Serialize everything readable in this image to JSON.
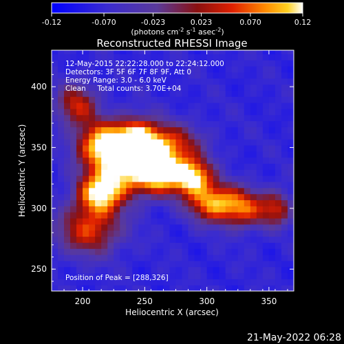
{
  "chart_data": {
    "type": "heatmap",
    "title": "Reconstructed RHESSI Image",
    "xlabel": "Heliocentric X (arcsec)",
    "ylabel": "Heliocentric Y (arcsec)",
    "xlim": [
      175,
      370
    ],
    "ylim": [
      232,
      430
    ],
    "x_ticks": [
      200,
      250,
      300,
      350
    ],
    "y_ticks": [
      250,
      300,
      350,
      400
    ],
    "colorbar": {
      "min": -0.12,
      "max": 0.12,
      "tick_values": [
        -0.12,
        -0.07,
        -0.023,
        0.023,
        0.07,
        0.12
      ],
      "tick_labels": [
        "-0.12",
        "-0.070",
        "-0.023",
        "0.023",
        "0.070",
        "0.12"
      ],
      "unit_base": "(photons cm",
      "unit_exp1": "-2",
      "unit_mid1": " s",
      "unit_exp2": "-1",
      "unit_mid2": " asec",
      "unit_exp3": "-2",
      "unit_end": ")"
    },
    "annotations": [
      "12-May-2015 22:22:28.000 to 22:24:12.000",
      "Detectors: 3F 5F 6F 7F 8F 9F, Att 0",
      "Energy Range: 3.0 - 6.0 keV",
      "Clean     Total counts: 3.70E+04"
    ],
    "peak_label": "Position of Peak = [288,326]",
    "peak": [
      288,
      326
    ],
    "source_blobs": [
      {
        "x": 215,
        "y": 352,
        "sx": 14,
        "sy": 13,
        "amp": 0.112
      },
      {
        "x": 243,
        "y": 357,
        "sx": 13,
        "sy": 12,
        "amp": 0.112
      },
      {
        "x": 262,
        "y": 330,
        "sx": 12,
        "sy": 12,
        "amp": 0.11
      },
      {
        "x": 288,
        "y": 326,
        "sx": 11,
        "sy": 10,
        "amp": 0.12
      },
      {
        "x": 213,
        "y": 312,
        "sx": 13,
        "sy": 12,
        "amp": 0.1
      },
      {
        "x": 305,
        "y": 305,
        "sx": 14,
        "sy": 11,
        "amp": 0.09
      },
      {
        "x": 235,
        "y": 330,
        "sx": 16,
        "sy": 14,
        "amp": 0.08
      },
      {
        "x": 205,
        "y": 282,
        "sx": 18,
        "sy": 14,
        "amp": 0.05
      },
      {
        "x": 270,
        "y": 352,
        "sx": 18,
        "sy": 12,
        "amp": 0.05
      },
      {
        "x": 195,
        "y": 385,
        "sx": 12,
        "sy": 12,
        "amp": 0.04
      },
      {
        "x": 330,
        "y": 300,
        "sx": 12,
        "sy": 11,
        "amp": 0.05
      },
      {
        "x": 356,
        "y": 300,
        "sx": 9,
        "sy": 10,
        "amp": 0.035
      }
    ],
    "background_level": -0.075
  },
  "footer": {
    "timestamp": "21-May-2022 06:28"
  }
}
